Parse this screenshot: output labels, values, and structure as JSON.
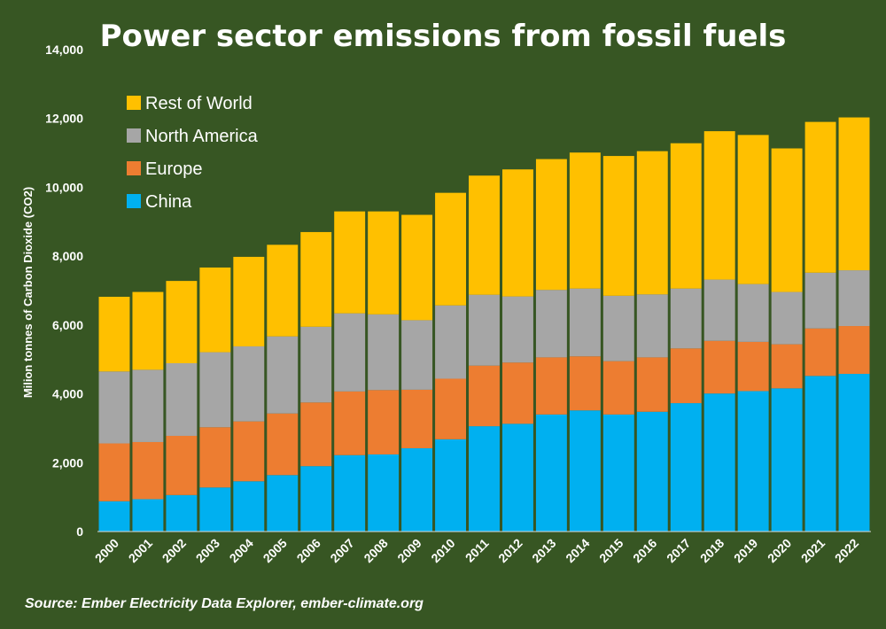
{
  "chart_data": {
    "type": "bar",
    "stacked": true,
    "title": "Power sector emissions from fossil fuels",
    "ylabel": "Milion tonnes of Carbon Dioxide (CO2)",
    "source": "Source: Ember Electricity Data Explorer, ember-climate.org",
    "ylim": [
      0,
      14000
    ],
    "yticks": [
      0,
      2000,
      4000,
      6000,
      8000,
      10000,
      12000,
      14000
    ],
    "ytick_labels": [
      "0",
      "2,000",
      "4,000",
      "6,000",
      "8,000",
      "10,000",
      "12,000",
      "14,000"
    ],
    "grid": false,
    "legend_position": "top-left",
    "categories": [
      "2000",
      "2001",
      "2002",
      "2003",
      "2004",
      "2005",
      "2006",
      "2007",
      "2008",
      "2009",
      "2010",
      "2011",
      "2012",
      "2013",
      "2014",
      "2015",
      "2016",
      "2017",
      "2018",
      "2019",
      "2020",
      "2021",
      "2022"
    ],
    "series": [
      {
        "name": "China",
        "color": "#00b0f0",
        "values": [
          880,
          940,
          1060,
          1280,
          1460,
          1640,
          1900,
          2220,
          2240,
          2420,
          2680,
          3060,
          3130,
          3400,
          3520,
          3400,
          3480,
          3730,
          4010,
          4080,
          4160,
          4520,
          4580
        ]
      },
      {
        "name": "Europe",
        "color": "#ed7d31",
        "values": [
          1680,
          1660,
          1720,
          1750,
          1740,
          1790,
          1850,
          1850,
          1870,
          1700,
          1760,
          1760,
          1780,
          1660,
          1570,
          1550,
          1580,
          1590,
          1530,
          1430,
          1280,
          1380,
          1390
        ]
      },
      {
        "name": "North America",
        "color": "#a6a6a6",
        "values": [
          2090,
          2100,
          2110,
          2180,
          2180,
          2240,
          2200,
          2270,
          2200,
          2020,
          2130,
          2060,
          1920,
          1960,
          1970,
          1900,
          1830,
          1740,
          1780,
          1680,
          1520,
          1620,
          1620
        ]
      },
      {
        "name": "Rest of World",
        "color": "#ffc000",
        "values": [
          2170,
          2260,
          2390,
          2460,
          2600,
          2660,
          2750,
          2960,
          2990,
          3060,
          3270,
          3460,
          3690,
          3800,
          3950,
          4060,
          4160,
          4220,
          4310,
          4330,
          4170,
          4380,
          4440
        ]
      }
    ],
    "legend_order": [
      "Rest of World",
      "North America",
      "Europe",
      "China"
    ]
  }
}
